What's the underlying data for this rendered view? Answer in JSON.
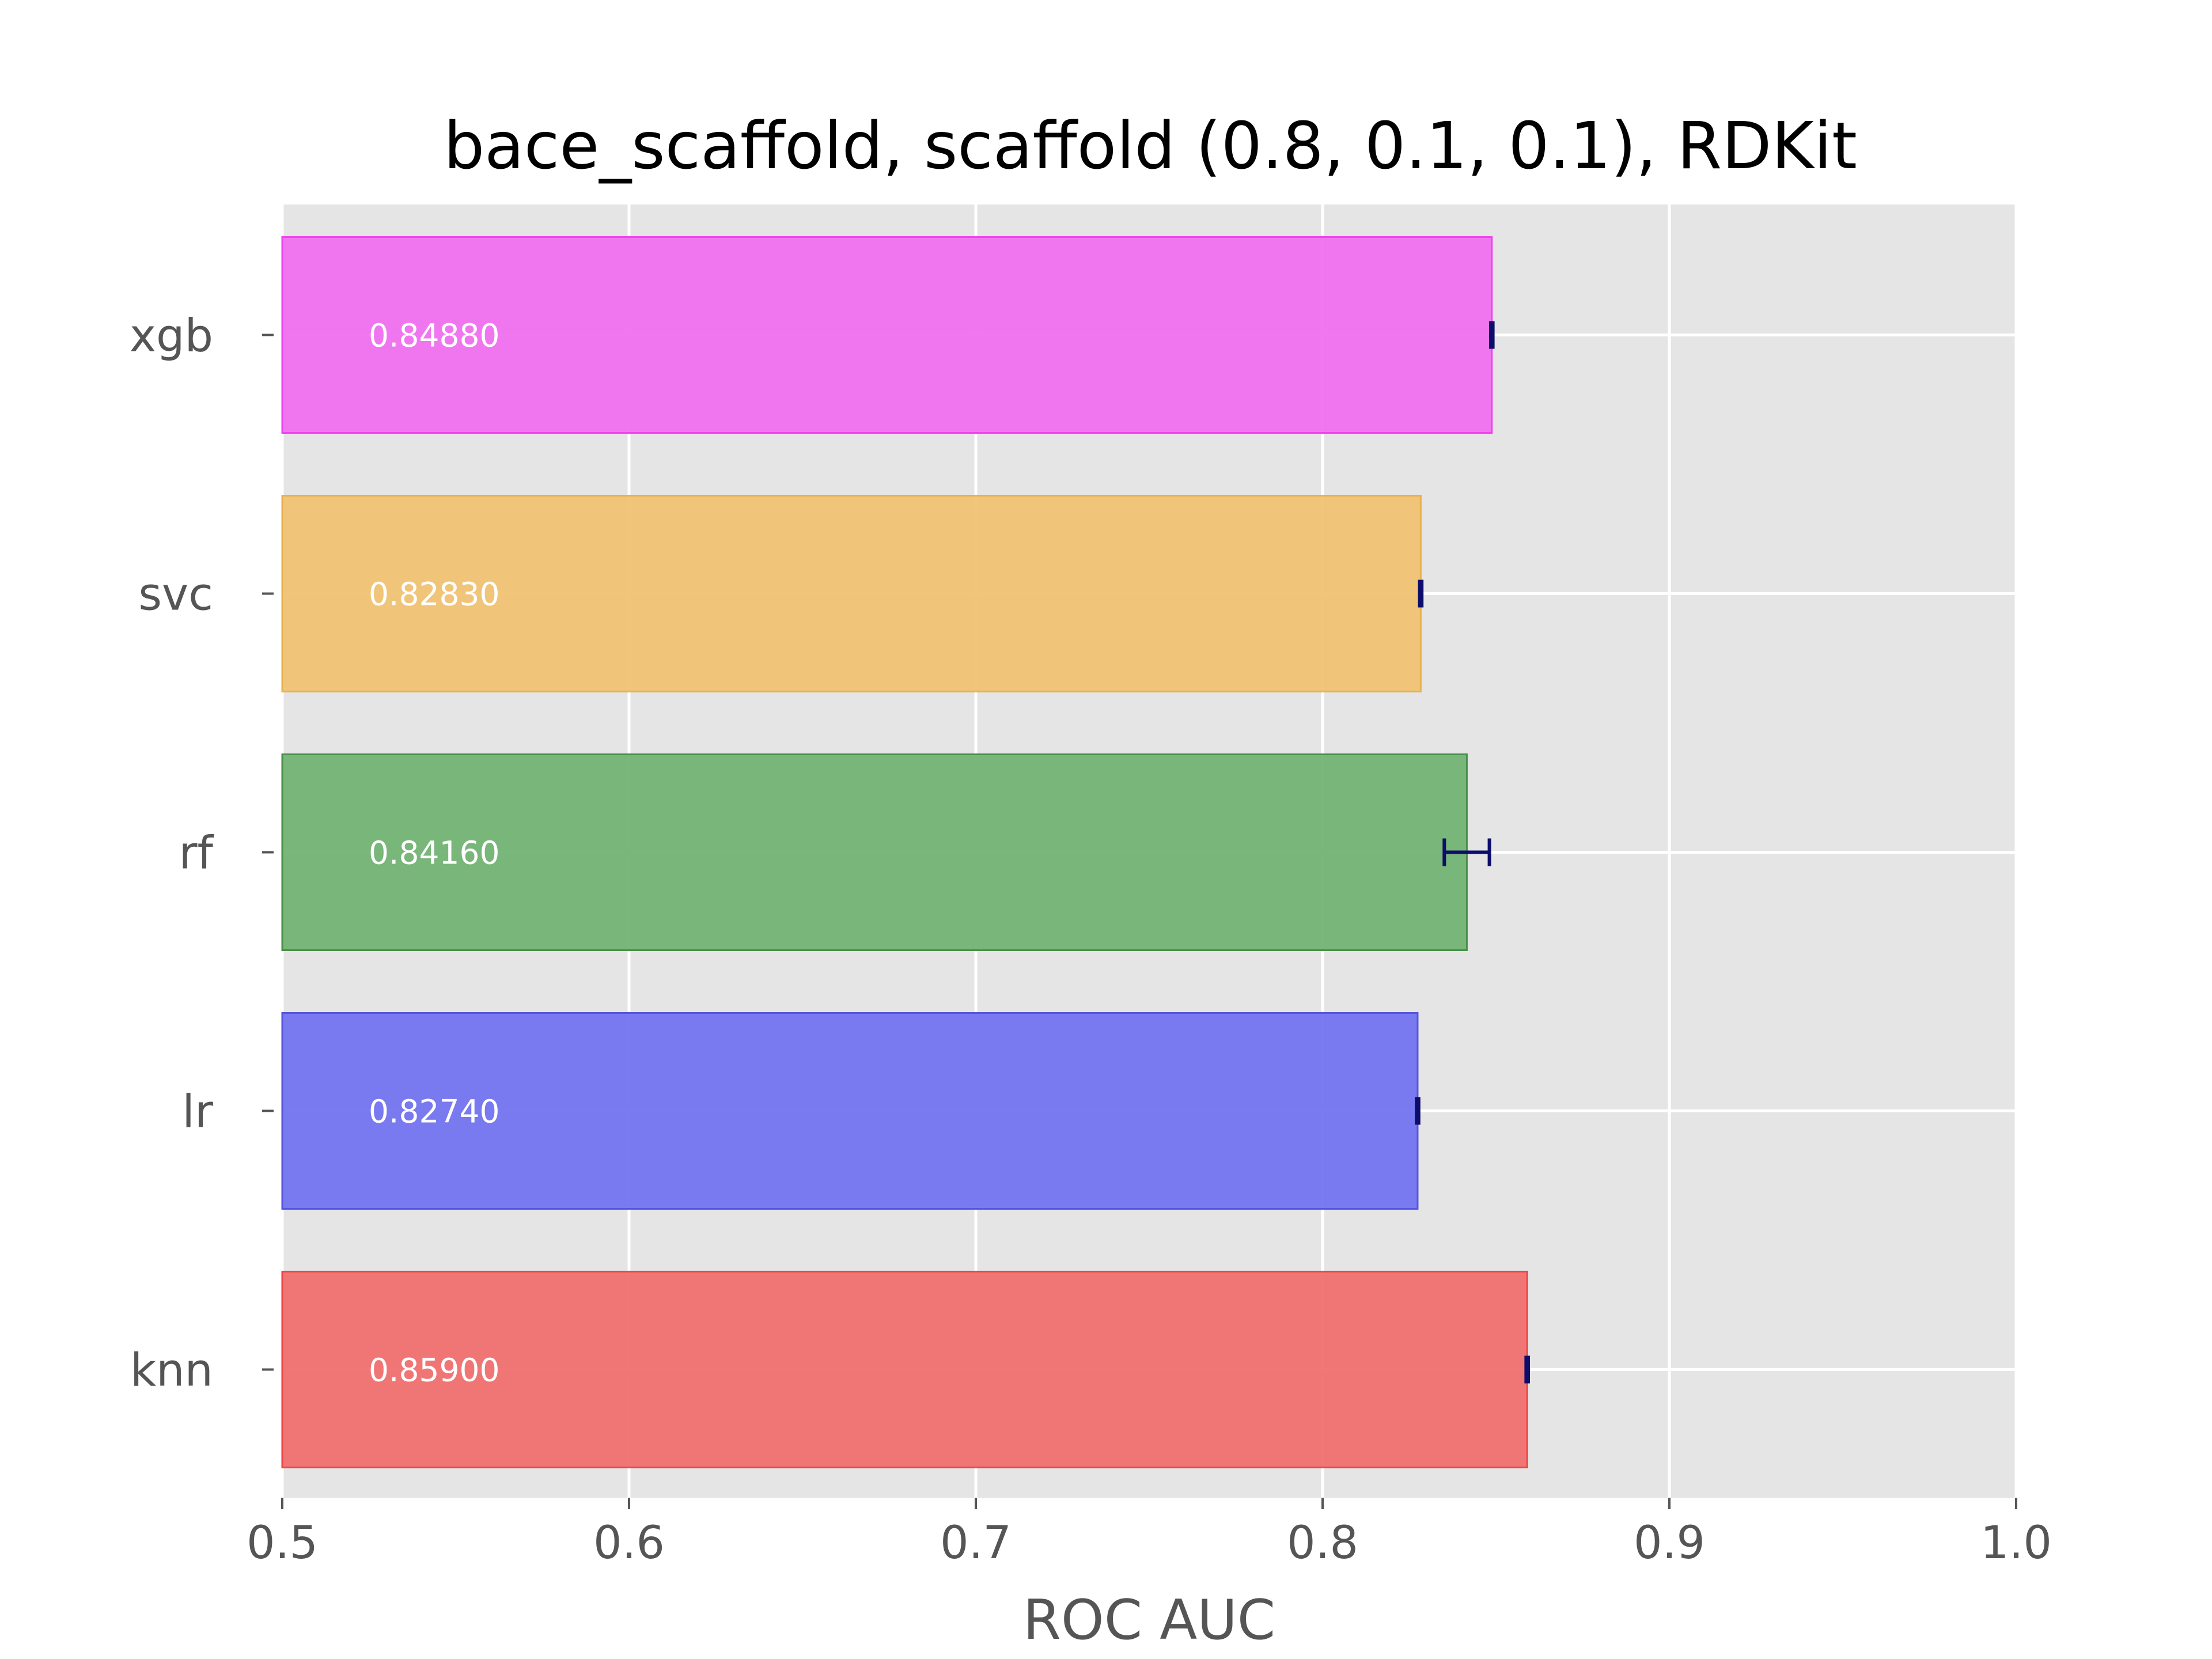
{
  "chart_data": {
    "type": "bar",
    "orientation": "horizontal",
    "title": "bace_scaffold, scaffold (0.8, 0.1, 0.1), RDKit",
    "xlabel": "ROC AUC",
    "ylabel": "",
    "xlim": [
      0.5,
      1.0
    ],
    "xticks": [
      "0.5",
      "0.6",
      "0.7",
      "0.8",
      "0.9",
      "1.0"
    ],
    "categories": [
      "knn",
      "lr",
      "rf",
      "svc",
      "xgb"
    ],
    "values": [
      0.859,
      0.8274,
      0.8416,
      0.8283,
      0.8488
    ],
    "value_labels": [
      "0.85900",
      "0.82740",
      "0.84160",
      "0.82830",
      "0.84880"
    ],
    "errors": [
      0.0003,
      0.0003,
      0.0065,
      0.0003,
      0.0003
    ],
    "colors": [
      "#f0706f",
      "#7373f0",
      "#73b373",
      "#f0c373",
      "#f070f0"
    ],
    "edge_colors": [
      "#ee4444",
      "#5555dd",
      "#4a904a",
      "#e8b050",
      "#ee44ee"
    ],
    "error_color": "#0d0d6b",
    "grid": true,
    "legend": "none",
    "background": "#e5e5e5"
  }
}
